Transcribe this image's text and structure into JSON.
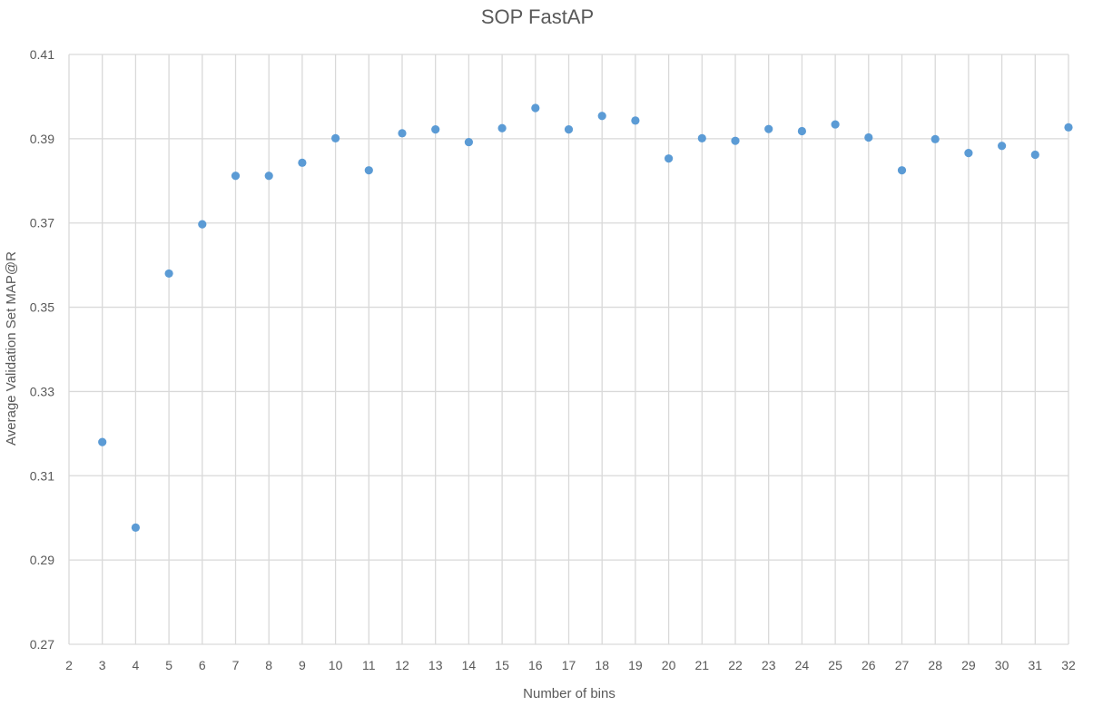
{
  "chart_data": {
    "type": "scatter",
    "title": "SOP FastAP",
    "xlabel": "Number of bins",
    "ylabel": "Average Validation Set MAP@R",
    "xlim": [
      2,
      32
    ],
    "ylim": [
      0.27,
      0.41
    ],
    "x_ticks": [
      "2",
      "3",
      "4",
      "5",
      "6",
      "7",
      "8",
      "9",
      "10",
      "11",
      "12",
      "13",
      "14",
      "15",
      "16",
      "17",
      "18",
      "19",
      "20",
      "21",
      "22",
      "23",
      "24",
      "25",
      "26",
      "27",
      "28",
      "29",
      "30",
      "31",
      "32"
    ],
    "y_ticks": [
      "0.41",
      "0.39",
      "0.37",
      "0.35",
      "0.33",
      "0.31",
      "0.29",
      "0.27"
    ],
    "y_tick_values": [
      0.41,
      0.39,
      0.37,
      0.35,
      0.33,
      0.31,
      0.29,
      0.27
    ],
    "grid": true,
    "legend": "none",
    "marker_color": "#5b9bd5",
    "series": [
      {
        "x": [
          3,
          4,
          5,
          6,
          7,
          8,
          9,
          10,
          11,
          12,
          13,
          14,
          15,
          16,
          17,
          18,
          19,
          20,
          21,
          22,
          23,
          24,
          25,
          26,
          27,
          28,
          29,
          30,
          31,
          32
        ],
        "y": [
          0.318,
          0.2977,
          0.358,
          0.3697,
          0.3812,
          0.3812,
          0.3843,
          0.3901,
          0.3825,
          0.3913,
          0.3922,
          0.3892,
          0.3925,
          0.3973,
          0.3922,
          0.3954,
          0.3943,
          0.3853,
          0.3901,
          0.3895,
          0.3923,
          0.3918,
          0.3934,
          0.3903,
          0.3825,
          0.3899,
          0.3866,
          0.3883,
          0.3862,
          0.3927
        ]
      }
    ]
  }
}
